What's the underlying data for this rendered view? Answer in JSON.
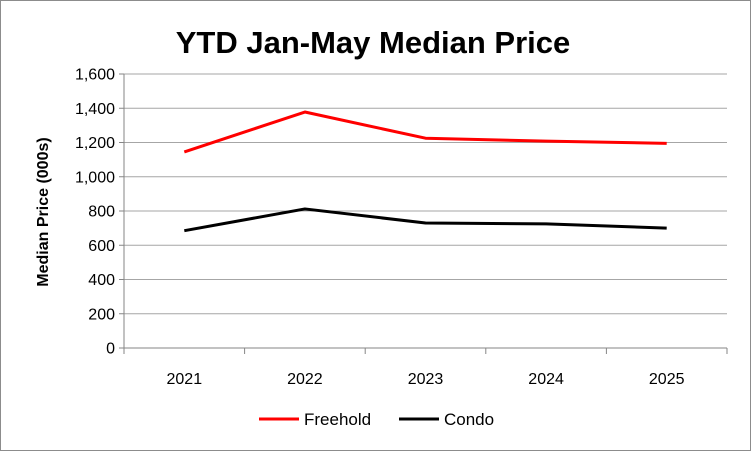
{
  "chart_data": {
    "type": "line",
    "title": "YTD Jan-May Median Price",
    "xlabel": "",
    "ylabel": "Median Price (000s)",
    "categories": [
      "2021",
      "2022",
      "2023",
      "2024",
      "2025"
    ],
    "ylim": [
      0,
      1600
    ],
    "ytick_step": 200,
    "ytick_labels": [
      "0",
      "200",
      "400",
      "600",
      "800",
      "1,000",
      "1,200",
      "1,400",
      "1,600"
    ],
    "grid": true,
    "legend_position": "bottom",
    "series": [
      {
        "name": "Freehold",
        "color": "#ff0000",
        "values": [
          1145,
          1378,
          1225,
          1208,
          1195
        ]
      },
      {
        "name": "Condo",
        "color": "#000000",
        "values": [
          685,
          812,
          730,
          725,
          700
        ]
      }
    ]
  }
}
